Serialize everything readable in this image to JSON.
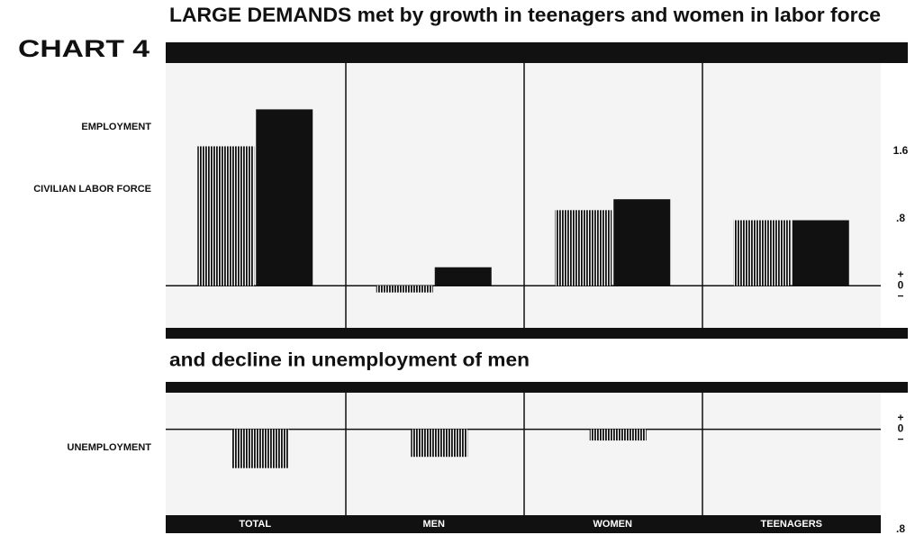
{
  "label": "CHART 4",
  "chart_data": [
    {
      "type": "bar",
      "title": "LARGE DEMANDS met by growth in teenagers and women in labor force",
      "series": [
        {
          "name": "CIVILIAN LABOR FORCE",
          "color": "#111111",
          "style": "hatched",
          "values": [
            1.66,
            -0.08,
            0.9,
            0.78
          ]
        },
        {
          "name": "EMPLOYMENT",
          "color": "#111111",
          "style": "solid",
          "values": [
            2.1,
            0.22,
            1.03,
            0.78
          ]
        }
      ],
      "ylim": [
        -0.48,
        2.63
      ],
      "yticks": [
        1.6,
        {
          "value": 0.8,
          "label": ".8"
        },
        0
      ],
      "zero_signs": [
        "+",
        "−"
      ]
    },
    {
      "type": "bar",
      "title": "and decline in unemployment of men",
      "categories": [
        "TOTAL",
        "MEN",
        "WOMEN",
        "TEENAGERS"
      ],
      "series": [
        {
          "name": "UNEMPLOYMENT",
          "color": "#111111",
          "style": "hatched",
          "values": [
            -0.31,
            -0.22,
            -0.09,
            0
          ]
        }
      ],
      "ylim": [
        -0.8,
        0.32
      ],
      "yticks": [
        0,
        {
          "value": -0.8,
          "label": ".8"
        }
      ],
      "zero_signs": [
        "+",
        "−"
      ]
    }
  ]
}
